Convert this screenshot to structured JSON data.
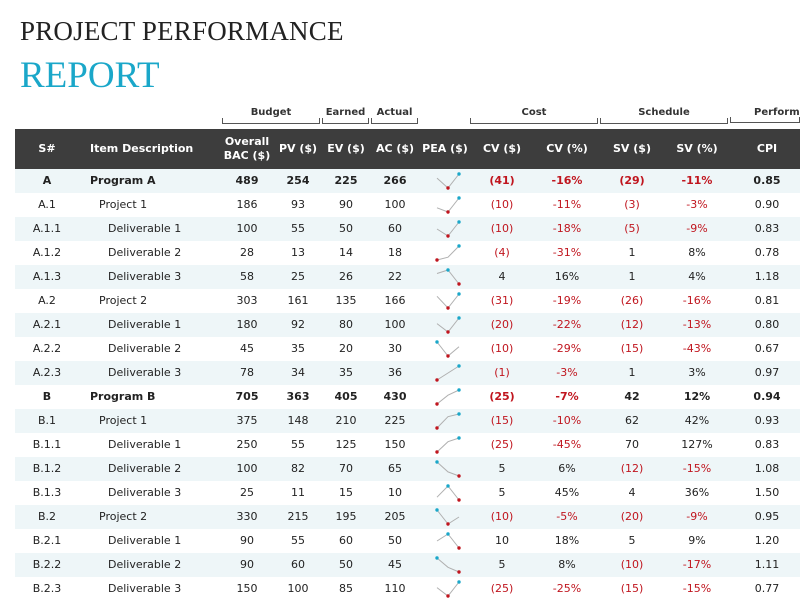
{
  "title_line1": "PROJECT PERFORMANCE",
  "title_line2": "REPORT",
  "groups": {
    "budget": "Budget",
    "earned": "Earned",
    "actual": "Actual",
    "cost": "Cost",
    "schedule": "Schedule",
    "performance": "Performance"
  },
  "columns": {
    "sn": "S#",
    "desc": "Item Description",
    "bac_line1": "Overall",
    "bac_line2": "BAC ($)",
    "pv": "PV ($)",
    "ev": "EV ($)",
    "ac": "AC ($)",
    "pea": "PEA ($)",
    "cv": "CV ($)",
    "cvp": "CV (%)",
    "sv": "SV ($)",
    "svp": "SV (%)",
    "cpi": "CPI"
  },
  "colors": {
    "accent": "#1aa7c9",
    "header_bg": "#3d3d3d",
    "negative": "#c0151e",
    "row_stripe": "#eef6f8",
    "spark_low": "#c0151e",
    "spark_high": "#1aa7c9"
  },
  "rows": [
    {
      "sn": "A",
      "desc": "Program A",
      "level": 0,
      "bac": "489",
      "pv": "254",
      "ev": "225",
      "ac": "266",
      "cv": "(41)",
      "cvp": "-16%",
      "sv": "(29)",
      "svp": "-11%",
      "cpi": "0.85"
    },
    {
      "sn": "A.1",
      "desc": "Project 1",
      "level": 1,
      "bac": "186",
      "pv": "93",
      "ev": "90",
      "ac": "100",
      "cv": "(10)",
      "cvp": "-11%",
      "sv": "(3)",
      "svp": "-3%",
      "cpi": "0.90"
    },
    {
      "sn": "A.1.1",
      "desc": "Deliverable 1",
      "level": 2,
      "bac": "100",
      "pv": "55",
      "ev": "50",
      "ac": "60",
      "cv": "(10)",
      "cvp": "-18%",
      "sv": "(5)",
      "svp": "-9%",
      "cpi": "0.83"
    },
    {
      "sn": "A.1.2",
      "desc": "Deliverable 2",
      "level": 2,
      "bac": "28",
      "pv": "13",
      "ev": "14",
      "ac": "18",
      "cv": "(4)",
      "cvp": "-31%",
      "sv": "1",
      "svp": "8%",
      "cpi": "0.78"
    },
    {
      "sn": "A.1.3",
      "desc": "Deliverable 3",
      "level": 2,
      "bac": "58",
      "pv": "25",
      "ev": "26",
      "ac": "22",
      "cv": "4",
      "cvp": "16%",
      "sv": "1",
      "svp": "4%",
      "cpi": "1.18"
    },
    {
      "sn": "A.2",
      "desc": "Project 2",
      "level": 1,
      "bac": "303",
      "pv": "161",
      "ev": "135",
      "ac": "166",
      "cv": "(31)",
      "cvp": "-19%",
      "sv": "(26)",
      "svp": "-16%",
      "cpi": "0.81"
    },
    {
      "sn": "A.2.1",
      "desc": "Deliverable 1",
      "level": 2,
      "bac": "180",
      "pv": "92",
      "ev": "80",
      "ac": "100",
      "cv": "(20)",
      "cvp": "-22%",
      "sv": "(12)",
      "svp": "-13%",
      "cpi": "0.80"
    },
    {
      "sn": "A.2.2",
      "desc": "Deliverable 2",
      "level": 2,
      "bac": "45",
      "pv": "35",
      "ev": "20",
      "ac": "30",
      "cv": "(10)",
      "cvp": "-29%",
      "sv": "(15)",
      "svp": "-43%",
      "cpi": "0.67"
    },
    {
      "sn": "A.2.3",
      "desc": "Deliverable 3",
      "level": 2,
      "bac": "78",
      "pv": "34",
      "ev": "35",
      "ac": "36",
      "cv": "(1)",
      "cvp": "-3%",
      "sv": "1",
      "svp": "3%",
      "cpi": "0.97"
    },
    {
      "sn": "B",
      "desc": "Program B",
      "level": 0,
      "bac": "705",
      "pv": "363",
      "ev": "405",
      "ac": "430",
      "cv": "(25)",
      "cvp": "-7%",
      "sv": "42",
      "svp": "12%",
      "cpi": "0.94"
    },
    {
      "sn": "B.1",
      "desc": "Project 1",
      "level": 1,
      "bac": "375",
      "pv": "148",
      "ev": "210",
      "ac": "225",
      "cv": "(15)",
      "cvp": "-10%",
      "sv": "62",
      "svp": "42%",
      "cpi": "0.93"
    },
    {
      "sn": "B.1.1",
      "desc": "Deliverable 1",
      "level": 2,
      "bac": "250",
      "pv": "55",
      "ev": "125",
      "ac": "150",
      "cv": "(25)",
      "cvp": "-45%",
      "sv": "70",
      "svp": "127%",
      "cpi": "0.83"
    },
    {
      "sn": "B.1.2",
      "desc": "Deliverable 2",
      "level": 2,
      "bac": "100",
      "pv": "82",
      "ev": "70",
      "ac": "65",
      "cv": "5",
      "cvp": "6%",
      "sv": "(12)",
      "svp": "-15%",
      "cpi": "1.08"
    },
    {
      "sn": "B.1.3",
      "desc": "Deliverable 3",
      "level": 2,
      "bac": "25",
      "pv": "11",
      "ev": "15",
      "ac": "10",
      "cv": "5",
      "cvp": "45%",
      "sv": "4",
      "svp": "36%",
      "cpi": "1.50"
    },
    {
      "sn": "B.2",
      "desc": "Project 2",
      "level": 1,
      "bac": "330",
      "pv": "215",
      "ev": "195",
      "ac": "205",
      "cv": "(10)",
      "cvp": "-5%",
      "sv": "(20)",
      "svp": "-9%",
      "cpi": "0.95"
    },
    {
      "sn": "B.2.1",
      "desc": "Deliverable 1",
      "level": 2,
      "bac": "90",
      "pv": "55",
      "ev": "60",
      "ac": "50",
      "cv": "10",
      "cvp": "18%",
      "sv": "5",
      "svp": "9%",
      "cpi": "1.20"
    },
    {
      "sn": "B.2.2",
      "desc": "Deliverable 2",
      "level": 2,
      "bac": "90",
      "pv": "60",
      "ev": "50",
      "ac": "45",
      "cv": "5",
      "cvp": "8%",
      "sv": "(10)",
      "svp": "-17%",
      "cpi": "1.11"
    },
    {
      "sn": "B.2.3",
      "desc": "Deliverable 3",
      "level": 2,
      "bac": "150",
      "pv": "100",
      "ev": "85",
      "ac": "110",
      "cv": "(25)",
      "cvp": "-25%",
      "sv": "(15)",
      "svp": "-15%",
      "cpi": "0.77"
    }
  ]
}
